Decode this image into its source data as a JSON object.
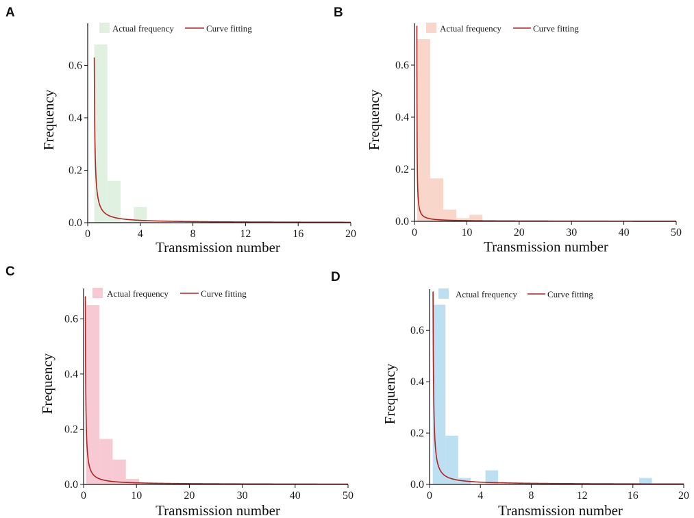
{
  "figure": {
    "colors": {
      "curve": "#b22222",
      "axis": "#111111"
    }
  },
  "chart_data": [
    {
      "panel": "A",
      "type": "bar",
      "bar_color": "#dbeedd",
      "bar_opacity": 0.85,
      "bins": [
        {
          "x0": 0.5,
          "x1": 1.5,
          "value": 0.68
        },
        {
          "x0": 1.5,
          "x1": 2.5,
          "value": 0.16
        },
        {
          "x0": 2.5,
          "x1": 3.5,
          "value": 0.005
        },
        {
          "x0": 3.5,
          "x1": 4.5,
          "value": 0.06
        }
      ],
      "curve": {
        "x_start": 0.5,
        "x_end": 20,
        "coef": 0.0315,
        "x0": 0.45,
        "peak": 0.75
      },
      "xlabel": "Transmission number",
      "ylabel": "Frequency",
      "xlim": [
        0,
        20
      ],
      "ylim": [
        0,
        0.75
      ],
      "xticks": [
        0,
        4,
        8,
        12,
        16,
        20
      ],
      "yticks": [
        0.0,
        0.2,
        0.4,
        0.6
      ],
      "ytick_labels": [
        "0.0",
        "0.2",
        "0.4",
        "0.6"
      ],
      "legend": {
        "bar": "Actual frequency",
        "line": "Curve fitting"
      }
    },
    {
      "panel": "B",
      "type": "bar",
      "bar_color": "#f7cfc0",
      "bar_opacity": 0.85,
      "bins": [
        {
          "x0": 0.5,
          "x1": 3,
          "value": 0.7
        },
        {
          "x0": 3,
          "x1": 5.5,
          "value": 0.165
        },
        {
          "x0": 5.5,
          "x1": 8,
          "value": 0.045
        },
        {
          "x0": 8,
          "x1": 10.5,
          "value": 0.012
        },
        {
          "x0": 10.5,
          "x1": 13,
          "value": 0.025
        }
      ],
      "curve": {
        "x_start": 0.45,
        "x_end": 50,
        "coef": 0.0255,
        "x0": 0.42,
        "peak": 0.75
      },
      "xlabel": "Transmission number",
      "ylabel": "Frequency",
      "xlim": [
        0,
        50
      ],
      "ylim": [
        0,
        0.75
      ],
      "xticks": [
        0,
        10,
        20,
        30,
        40,
        50
      ],
      "yticks": [
        0.0,
        0.2,
        0.4,
        0.6
      ],
      "ytick_labels": [
        "0.0",
        "0.2",
        "0.4",
        "0.6"
      ],
      "legend": {
        "bar": "Actual frequency",
        "line": "Curve fitting"
      }
    },
    {
      "panel": "C",
      "type": "bar",
      "bar_color": "#f6c1cb",
      "bar_opacity": 0.85,
      "bins": [
        {
          "x0": 0.5,
          "x1": 3,
          "value": 0.65
        },
        {
          "x0": 3,
          "x1": 5.5,
          "value": 0.165
        },
        {
          "x0": 5.5,
          "x1": 8,
          "value": 0.09
        },
        {
          "x0": 8,
          "x1": 10.5,
          "value": 0.02
        }
      ],
      "curve": {
        "x_start": 0.3,
        "x_end": 50,
        "coef": 0.056,
        "x0": 0.25,
        "peak": 0.68
      },
      "xlabel": "Transmission number",
      "ylabel": "Frequency",
      "xlim": [
        0,
        50
      ],
      "ylim": [
        0,
        0.7
      ],
      "xticks": [
        0,
        10,
        20,
        30,
        40,
        50
      ],
      "yticks": [
        0.0,
        0.2,
        0.4,
        0.6
      ],
      "ytick_labels": [
        "0.0",
        "0.2",
        "0.4",
        "0.6"
      ],
      "legend": {
        "bar": "Actual frequency",
        "line": "Curve fitting"
      }
    },
    {
      "panel": "D",
      "type": "bar",
      "bar_color": "#b5dbef",
      "bar_opacity": 0.9,
      "bins": [
        {
          "x0": 0.25,
          "x1": 1.25,
          "value": 0.7
        },
        {
          "x0": 1.25,
          "x1": 2.25,
          "value": 0.19
        },
        {
          "x0": 2.25,
          "x1": 3.25,
          "value": 0.025
        },
        {
          "x0": 4.4,
          "x1": 5.4,
          "value": 0.055
        },
        {
          "x0": 16.5,
          "x1": 17.5,
          "value": 0.025
        }
      ],
      "curve": {
        "x_start": 0.25,
        "x_end": 20,
        "coef": 0.0336,
        "x0": 0.23,
        "peak": 0.75
      },
      "xlabel": "Transmission number",
      "ylabel": "Frequency",
      "xlim": [
        0,
        20
      ],
      "ylim": [
        0,
        0.75
      ],
      "xticks": [
        0,
        4,
        8,
        12,
        16,
        20
      ],
      "yticks": [
        0.0,
        0.2,
        0.4,
        0.6
      ],
      "ytick_labels": [
        "0.0",
        "0.2",
        "0.4",
        "0.6"
      ],
      "legend": {
        "bar": "Actual frequency",
        "line": "Curve fitting"
      }
    }
  ]
}
